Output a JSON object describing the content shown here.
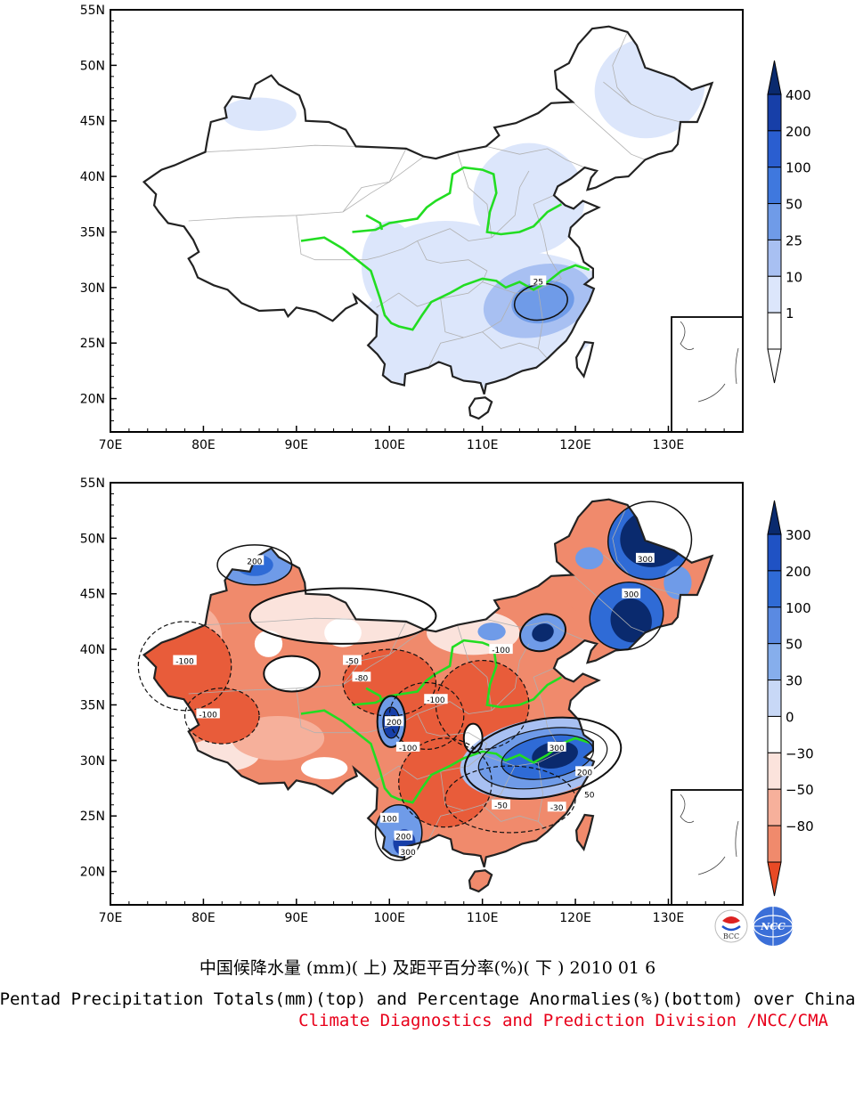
{
  "figure": {
    "caption_cn": "中国候降水量 (mm)( 上) 及距平百分率(%)( 下 ) 2010 01 6",
    "caption_en": "Pentad Precipitation Totals(mm)(top) and Percentage Anormalies(%)(bottom) over China",
    "caption_org": "Climate Diagnostics and Prediction Division /NCC/CMA",
    "logos": [
      "BCC",
      "NCC"
    ]
  },
  "colors": {
    "land": "#ffffff",
    "boundary": "#222222",
    "province": "#b0b0b0",
    "river": "#22dd22",
    "wet_1": "#dce6fb",
    "wet_2": "#a8c0f2",
    "wet_3": "#6f9be8",
    "wet_4": "#2f6bd6",
    "wet_5": "#173fa8",
    "wet_6": "#0a2a6e",
    "dry_1": "#fbe3dc",
    "dry_2": "#f6b09b",
    "dry_3": "#f08a6c",
    "dry_4": "#e85c3a"
  },
  "chart_data": [
    {
      "type": "heatmap",
      "panel": "top",
      "quantity": "Pentad precipitation totals (mm)",
      "xticks": [
        "70E",
        "80E",
        "90E",
        "100E",
        "110E",
        "120E",
        "130E"
      ],
      "yticks": [
        "55N",
        "50N",
        "45N",
        "40N",
        "35N",
        "30N",
        "25N",
        "20N"
      ],
      "xlim": [
        70,
        138
      ],
      "ylim": [
        17,
        55
      ],
      "colorbar": {
        "levels": [
          "400",
          "200",
          "100",
          "50",
          "25",
          "10",
          "1"
        ]
      },
      "contour_labels": [
        {
          "text": "25",
          "lon": 116,
          "lat": 30.6
        }
      ]
    },
    {
      "type": "heatmap",
      "panel": "bottom",
      "quantity": "Percentage anomalies (%)",
      "xticks": [
        "70E",
        "80E",
        "90E",
        "100E",
        "110E",
        "120E",
        "130E"
      ],
      "yticks": [
        "55N",
        "50N",
        "45N",
        "40N",
        "35N",
        "30N",
        "25N",
        "20N"
      ],
      "xlim": [
        70,
        138
      ],
      "ylim": [
        17,
        55
      ],
      "colorbar": {
        "levels": [
          "300",
          "200",
          "100",
          "50",
          "30",
          "0",
          "−30",
          "−50",
          "−80"
        ]
      },
      "contour_labels": [
        {
          "text": "-100",
          "lon": 78,
          "lat": 39
        },
        {
          "text": "-100",
          "lon": 80.5,
          "lat": 34.2
        },
        {
          "text": "-100",
          "lon": 105,
          "lat": 35.5
        },
        {
          "text": "-100",
          "lon": 102,
          "lat": 31.2
        },
        {
          "text": "-100",
          "lon": 112,
          "lat": 40
        },
        {
          "text": "-80",
          "lon": 97,
          "lat": 37.5
        },
        {
          "text": "-50",
          "lon": 96,
          "lat": 39
        },
        {
          "text": "-50",
          "lon": 112,
          "lat": 26
        },
        {
          "text": "200",
          "lon": 85.5,
          "lat": 48
        },
        {
          "text": "200",
          "lon": 100.5,
          "lat": 33.5
        },
        {
          "text": "300",
          "lon": 118,
          "lat": 31.2
        },
        {
          "text": "300",
          "lon": 126,
          "lat": 45
        },
        {
          "text": "300",
          "lon": 127.5,
          "lat": 48.2
        },
        {
          "text": "100",
          "lon": 100,
          "lat": 24.8
        },
        {
          "text": "200",
          "lon": 101.5,
          "lat": 23.2
        },
        {
          "text": "300",
          "lon": 102,
          "lat": 21.8
        },
        {
          "text": "200",
          "lon": 121,
          "lat": 29
        },
        {
          "text": "50",
          "lon": 121.5,
          "lat": 27
        },
        {
          "text": "-30",
          "lon": 118,
          "lat": 25.8
        }
      ]
    }
  ]
}
